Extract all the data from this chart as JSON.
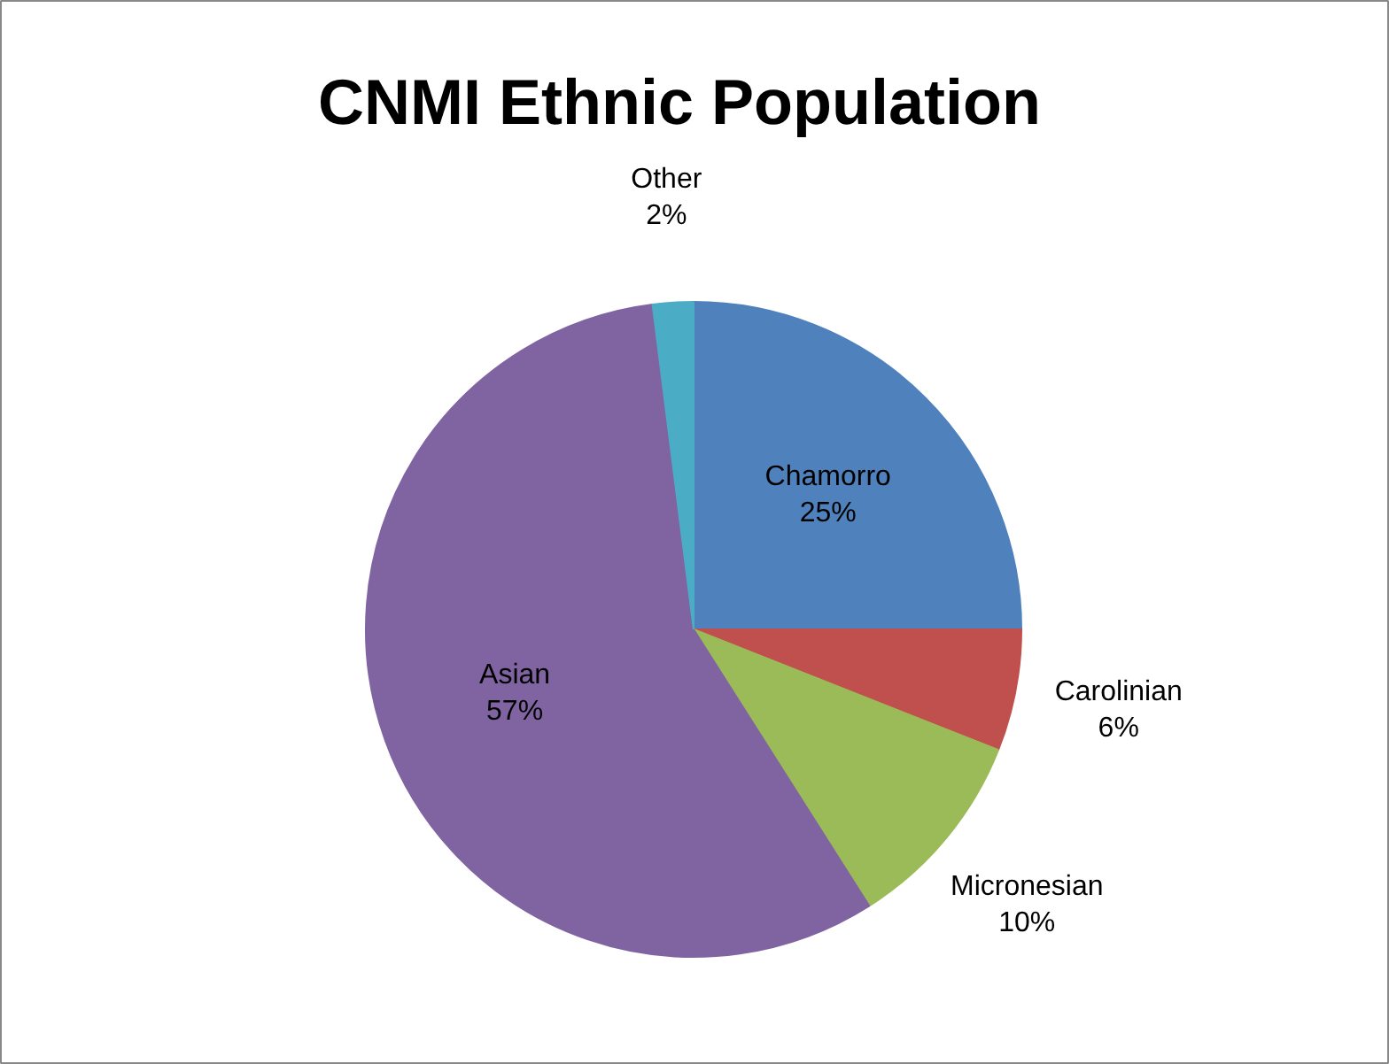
{
  "chart_data": {
    "type": "pie",
    "title": "CNMI Ethnic Population",
    "categories": [
      "Chamorro",
      "Carolinian",
      "Micronesian",
      "Asian",
      "Other"
    ],
    "values": [
      25,
      6,
      10,
      57,
      2
    ],
    "colors": [
      "#4f81bd",
      "#c0504d",
      "#9bbb59",
      "#8064a2",
      "#4bacc6"
    ],
    "value_labels": [
      "25%",
      "6%",
      "10%",
      "57%",
      "2%"
    ],
    "legend": false
  }
}
